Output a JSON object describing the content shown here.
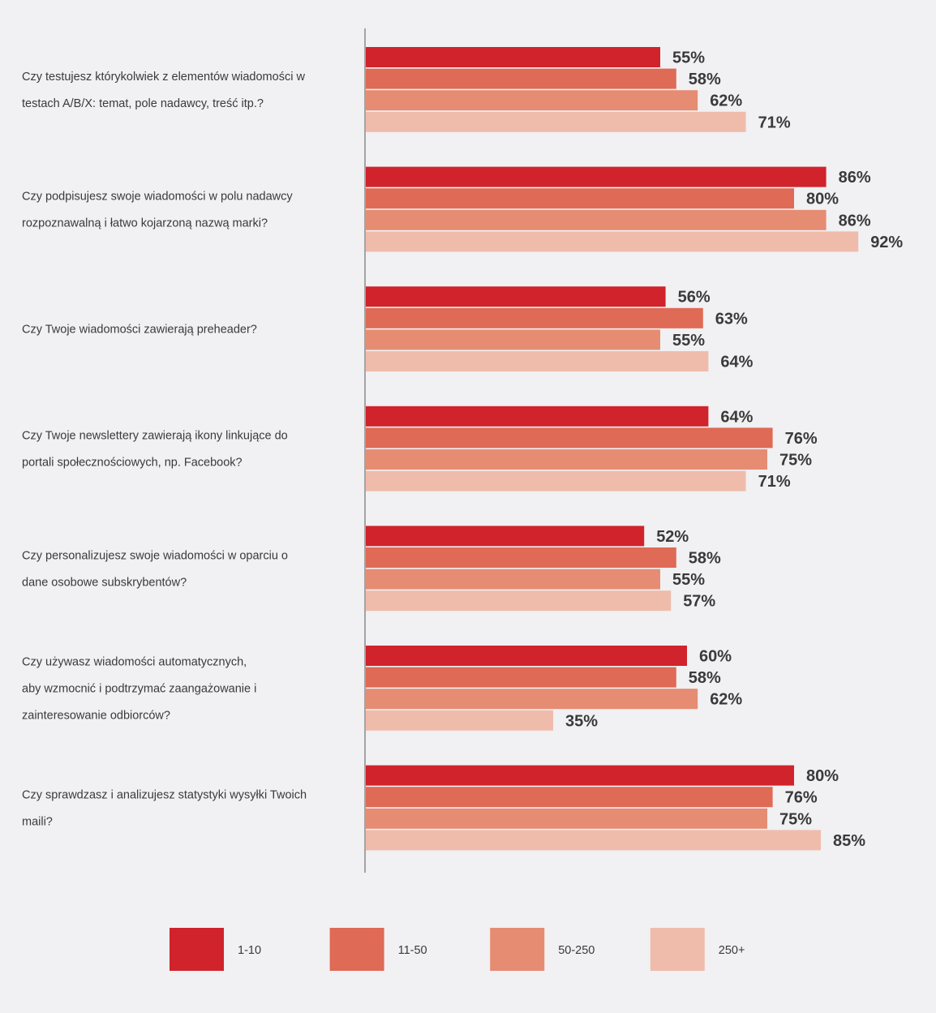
{
  "chart_data": {
    "type": "bar",
    "orientation": "horizontal",
    "title": "",
    "xlabel": "",
    "ylabel": "",
    "xlim": [
      0,
      100
    ],
    "value_suffix": "%",
    "legend_position": "bottom",
    "categories": [
      {
        "lines": [
          "Czy testujesz którykolwiek z elementów wiadomości w",
          "testach A/B/X: temat, pole nadawcy, treść itp.?"
        ]
      },
      {
        "lines": [
          "Czy podpisujesz swoje wiadomości w polu nadawcy",
          "rozpoznawalną i łatwo kojarzoną nazwą marki?"
        ]
      },
      {
        "lines": [
          "Czy Twoje wiadomości zawierają preheader?"
        ]
      },
      {
        "lines": [
          "Czy Twoje newslettery zawierają ikony linkujące do",
          "portali społecznościowych, np. Facebook?"
        ]
      },
      {
        "lines": [
          "Czy personalizujesz swoje wiadomości w oparciu o",
          "dane osobowe subskrybentów?"
        ]
      },
      {
        "lines": [
          "Czy używasz wiadomości automatycznych,",
          "aby wzmocnić i podtrzymać zaangażowanie i",
          "zainteresowanie odbiorców?"
        ]
      },
      {
        "lines": [
          "Czy sprawdzasz i analizujesz statystyki wysyłki Twoich",
          "maili?"
        ]
      }
    ],
    "series": [
      {
        "name": "1-10",
        "color": "#d0232b",
        "values": [
          55,
          86,
          56,
          64,
          52,
          60,
          80
        ]
      },
      {
        "name": "11-50",
        "color": "#df6a55",
        "values": [
          58,
          80,
          63,
          76,
          58,
          58,
          76
        ]
      },
      {
        "name": "50-250",
        "color": "#e58c73",
        "values": [
          62,
          86,
          55,
          75,
          55,
          62,
          75
        ]
      },
      {
        "name": "250+",
        "color": "#efbcac",
        "values": [
          71,
          92,
          64,
          71,
          57,
          35,
          85
        ]
      }
    ]
  }
}
